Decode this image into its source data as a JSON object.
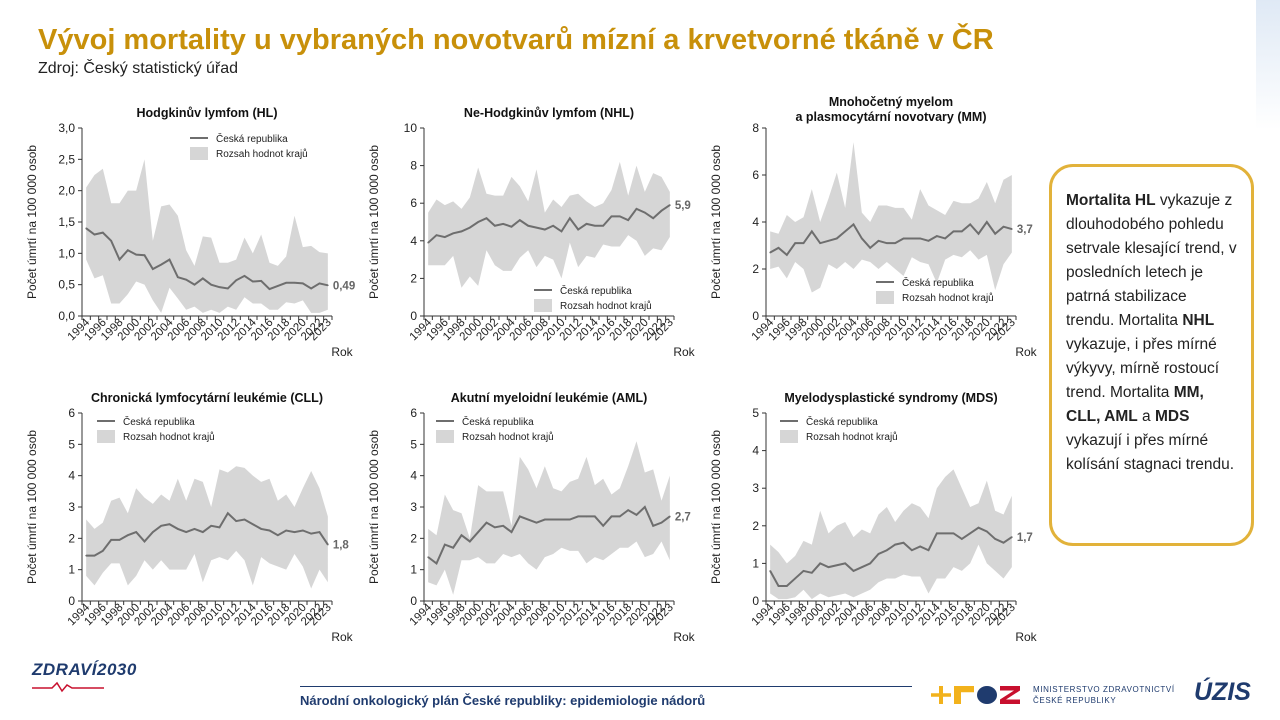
{
  "header": {
    "title": "Vývoj mortality u vybraných novotvarů mízní a krvetvorné tkáně v ČR",
    "source": "Zdroj: Český statistický úřad"
  },
  "callout": {
    "p1_bold": "Mortalita HL",
    "p1_text": " vykazuje z dlouhodobého pohledu setrvale klesající trend, v posledních letech je patrná stabilizace trendu. Mortalita ",
    "p2_bold": "NHL",
    "p2_text": " vykazuje, i přes mírné výkyvy, mírně rostoucí trend. Mortalita ",
    "p3_bold": "MM, CLL, AML",
    "p3_mid": " a ",
    "p4_bold": "MDS",
    "p4_text": " vykazují i přes mírné kolísání stagnaci trendu."
  },
  "footer": {
    "text": "Národní onkologický plán České republiky: epidemiologie nádorů",
    "logo_left": "ZDRAVÍ2030",
    "ministry_line1": "MINISTERSTVO ZDRAVOTNICTVÍ",
    "ministry_line2": "ČESKÉ REPUBLIKY",
    "logo_right": "ÚZIS"
  },
  "colors": {
    "title": "#c8900a",
    "line": "#6e6e6e",
    "band": "#d6d6d6",
    "callout_border": "#e2b23a",
    "footer": "#1f3b6e"
  },
  "chart_data": [
    {
      "type": "area",
      "title": "Hodgkinův lymfom (HL)",
      "ylabel": "Počet úmrtí na 100 000 osob",
      "xlabel": "Rok",
      "ylim": [
        0,
        3.0
      ],
      "yticks": [
        "0,0",
        "0,5",
        "1,0",
        "1,5",
        "2,0",
        "2,5",
        "3,0"
      ],
      "ytick_values": [
        0,
        0.5,
        1,
        1.5,
        2,
        2.5,
        3
      ],
      "x": [
        1994,
        1995,
        1996,
        1997,
        1998,
        1999,
        2000,
        2001,
        2002,
        2003,
        2004,
        2005,
        2006,
        2007,
        2008,
        2009,
        2010,
        2011,
        2012,
        2013,
        2014,
        2015,
        2016,
        2017,
        2018,
        2019,
        2020,
        2021,
        2022,
        2023
      ],
      "xtick_labels": [
        "1994",
        "1996",
        "1998",
        "2000",
        "2002",
        "2004",
        "2006",
        "2008",
        "2010",
        "2012",
        "2014",
        "2016",
        "2018",
        "2020",
        "2022",
        "2023"
      ],
      "legend": [
        "Česká republika",
        "Rozsah hodnot krajů"
      ],
      "series": [
        {
          "name": "Česká republika",
          "values": [
            1.4,
            1.3,
            1.33,
            1.2,
            0.9,
            1.05,
            0.98,
            0.97,
            0.75,
            0.82,
            0.9,
            0.62,
            0.58,
            0.5,
            0.6,
            0.5,
            0.46,
            0.44,
            0.57,
            0.64,
            0.55,
            0.56,
            0.43,
            0.48,
            0.53,
            0.53,
            0.52,
            0.44,
            0.52,
            0.49
          ]
        },
        {
          "name": "Rozsah hodnot krajů – max",
          "values": [
            2.05,
            2.25,
            2.35,
            1.8,
            1.8,
            2.0,
            2.0,
            2.5,
            1.2,
            1.75,
            1.78,
            1.6,
            1.05,
            0.8,
            1.27,
            1.25,
            0.85,
            0.85,
            0.9,
            1.25,
            1.0,
            1.3,
            0.85,
            0.8,
            0.95,
            1.6,
            1.1,
            1.12,
            1.02,
            1.0
          ]
        },
        {
          "name": "Rozsah hodnot krajů – min",
          "values": [
            0.9,
            0.6,
            0.65,
            0.2,
            0.2,
            0.35,
            0.55,
            0.5,
            0.25,
            0.05,
            0.45,
            0.28,
            0.1,
            0.15,
            0.05,
            0.1,
            0.05,
            0.15,
            0.1,
            0.3,
            0.2,
            0.2,
            0.1,
            0.1,
            0.22,
            0.2,
            0.25,
            0.05,
            0.05,
            0.1
          ]
        }
      ],
      "end_label": "0,49"
    },
    {
      "type": "area",
      "title": "Ne-Hodgkinův lymfom (NHL)",
      "ylabel": "Počet úmrtí na 100 000 osob",
      "xlabel": "Rok",
      "ylim": [
        0,
        10
      ],
      "yticks": [
        "0",
        "2",
        "4",
        "6",
        "8",
        "10"
      ],
      "ytick_values": [
        0,
        2,
        4,
        6,
        8,
        10
      ],
      "x": [
        1994,
        1995,
        1996,
        1997,
        1998,
        1999,
        2000,
        2001,
        2002,
        2003,
        2004,
        2005,
        2006,
        2007,
        2008,
        2009,
        2010,
        2011,
        2012,
        2013,
        2014,
        2015,
        2016,
        2017,
        2018,
        2019,
        2020,
        2021,
        2022,
        2023
      ],
      "xtick_labels": [
        "1994",
        "1996",
        "1998",
        "2000",
        "2002",
        "2004",
        "2006",
        "2008",
        "2010",
        "2012",
        "2014",
        "2016",
        "2018",
        "2020",
        "2022",
        "2023"
      ],
      "legend": [
        "Česká republika",
        "Rozsah hodnot krajů"
      ],
      "series": [
        {
          "name": "Česká republika",
          "values": [
            3.9,
            4.3,
            4.2,
            4.4,
            4.5,
            4.7,
            5.0,
            5.2,
            4.8,
            4.9,
            4.75,
            5.1,
            4.8,
            4.7,
            4.6,
            4.8,
            4.5,
            5.2,
            4.6,
            4.9,
            4.8,
            4.8,
            5.3,
            5.3,
            5.1,
            5.7,
            5.5,
            5.2,
            5.6,
            5.9
          ]
        },
        {
          "name": "Rozsah hodnot krajů – max",
          "values": [
            5.5,
            6.2,
            5.9,
            6.1,
            5.7,
            6.3,
            7.9,
            6.5,
            6.4,
            6.4,
            7.4,
            6.9,
            6.1,
            7.8,
            5.5,
            6.2,
            5.8,
            6.4,
            6.5,
            6.1,
            5.8,
            6.0,
            6.7,
            8.2,
            6.4,
            8.0,
            6.6,
            7.6,
            7.4,
            6.6
          ]
        },
        {
          "name": "Rozsah hodnot krajů – min",
          "values": [
            2.7,
            2.7,
            2.7,
            3.2,
            1.5,
            2.1,
            1.6,
            3.5,
            2.7,
            2.4,
            2.4,
            3.1,
            3.5,
            2.6,
            3.2,
            3.0,
            2.0,
            3.9,
            2.6,
            3.2,
            3.1,
            3.8,
            3.7,
            3.7,
            4.3,
            4.0,
            3.2,
            3.6,
            3.5,
            4.2
          ]
        }
      ],
      "end_label": "5,9"
    },
    {
      "type": "area",
      "title": "Mnohočetný myelom a plasmocytární novotvary (MM)",
      "title_line1": "Mnohočetný myelom",
      "title_line2": "a plasmocytární novotvary (MM)",
      "ylabel": "Počet úmrtí na 100 000 osob",
      "xlabel": "Rok",
      "ylim": [
        0,
        8
      ],
      "yticks": [
        "0",
        "2",
        "4",
        "6",
        "8"
      ],
      "ytick_values": [
        0,
        2,
        4,
        6,
        8
      ],
      "x": [
        1994,
        1995,
        1996,
        1997,
        1998,
        1999,
        2000,
        2001,
        2002,
        2003,
        2004,
        2005,
        2006,
        2007,
        2008,
        2009,
        2010,
        2011,
        2012,
        2013,
        2014,
        2015,
        2016,
        2017,
        2018,
        2019,
        2020,
        2021,
        2022,
        2023
      ],
      "xtick_labels": [
        "1994",
        "1996",
        "1998",
        "2000",
        "2002",
        "2004",
        "2006",
        "2008",
        "2010",
        "2012",
        "2014",
        "2016",
        "2018",
        "2020",
        "2022",
        "2023"
      ],
      "legend": [
        "Česká republika",
        "Rozsah hodnot krajů"
      ],
      "series": [
        {
          "name": "Česká republika",
          "values": [
            2.7,
            2.9,
            2.6,
            3.1,
            3.1,
            3.6,
            3.1,
            3.2,
            3.3,
            3.6,
            3.9,
            3.3,
            2.9,
            3.2,
            3.1,
            3.1,
            3.3,
            3.3,
            3.3,
            3.2,
            3.4,
            3.3,
            3.6,
            3.6,
            3.9,
            3.5,
            4.0,
            3.5,
            3.8,
            3.7
          ]
        },
        {
          "name": "Rozsah hodnot krajů – max",
          "values": [
            3.6,
            3.5,
            4.3,
            4.0,
            4.2,
            5.4,
            4.0,
            5.0,
            6.1,
            4.6,
            7.4,
            4.4,
            4.0,
            4.7,
            4.7,
            4.6,
            4.6,
            4.1,
            5.4,
            4.7,
            4.5,
            4.3,
            4.9,
            4.8,
            4.8,
            5.0,
            5.7,
            4.8,
            5.8,
            6.0
          ]
        },
        {
          "name": "Rozsah hodnot krajů – min",
          "values": [
            2.0,
            2.1,
            1.6,
            2.3,
            2.0,
            1.0,
            1.2,
            2.2,
            2.0,
            2.3,
            2.0,
            2.4,
            2.3,
            2.0,
            2.3,
            2.0,
            1.7,
            2.5,
            2.3,
            2.2,
            1.4,
            2.4,
            2.6,
            2.5,
            2.8,
            2.4,
            2.6,
            1.1,
            2.2,
            2.7
          ]
        }
      ],
      "end_label": "3,7"
    },
    {
      "type": "area",
      "title": "Chronická lymfocytární leukémie (CLL)",
      "ylabel": "Počet úmrtí na 100 000 osob",
      "xlabel": "Rok",
      "ylim": [
        0,
        6
      ],
      "yticks": [
        "0",
        "1",
        "2",
        "3",
        "4",
        "5",
        "6"
      ],
      "ytick_values": [
        0,
        1,
        2,
        3,
        4,
        5,
        6
      ],
      "x": [
        1994,
        1995,
        1996,
        1997,
        1998,
        1999,
        2000,
        2001,
        2002,
        2003,
        2004,
        2005,
        2006,
        2007,
        2008,
        2009,
        2010,
        2011,
        2012,
        2013,
        2014,
        2015,
        2016,
        2017,
        2018,
        2019,
        2020,
        2021,
        2022,
        2023
      ],
      "xtick_labels": [
        "1994",
        "1996",
        "1998",
        "2000",
        "2002",
        "2004",
        "2006",
        "2008",
        "2010",
        "2012",
        "2014",
        "2016",
        "2018",
        "2020",
        "2022",
        "2023"
      ],
      "legend": [
        "Česká republika",
        "Rozsah hodnot krajů"
      ],
      "series": [
        {
          "name": "Česká republika",
          "values": [
            1.45,
            1.45,
            1.6,
            1.95,
            1.95,
            2.1,
            2.2,
            1.9,
            2.2,
            2.4,
            2.45,
            2.3,
            2.2,
            2.3,
            2.2,
            2.4,
            2.35,
            2.8,
            2.55,
            2.6,
            2.45,
            2.3,
            2.25,
            2.1,
            2.25,
            2.2,
            2.25,
            2.15,
            2.2,
            1.8
          ]
        },
        {
          "name": "Rozsah hodnot krajů – max",
          "values": [
            2.6,
            2.3,
            2.5,
            3.2,
            3.3,
            2.8,
            3.6,
            3.3,
            3.1,
            3.4,
            3.2,
            3.9,
            3.2,
            3.9,
            3.8,
            3.0,
            4.2,
            4.1,
            4.3,
            4.25,
            4.0,
            3.8,
            3.9,
            3.2,
            3.4,
            3.0,
            3.6,
            4.15,
            3.6,
            2.7
          ]
        },
        {
          "name": "Rozsah hodnot krajů – min",
          "values": [
            0.8,
            0.5,
            0.9,
            1.2,
            1.2,
            0.5,
            0.8,
            1.3,
            1.0,
            1.3,
            1.0,
            1.0,
            1.0,
            1.5,
            0.6,
            1.3,
            1.4,
            1.3,
            1.6,
            1.3,
            0.5,
            1.4,
            1.2,
            1.1,
            1.0,
            1.5,
            1.1,
            0.4,
            1.0,
            0.6
          ]
        }
      ],
      "end_label": "1,8"
    },
    {
      "type": "area",
      "title": "Akutní myeloidní leukémie (AML)",
      "ylabel": "Počet úmrtí na 100 000 osob",
      "xlabel": "Rok",
      "ylim": [
        0,
        6
      ],
      "yticks": [
        "0",
        "1",
        "2",
        "3",
        "4",
        "5",
        "6"
      ],
      "ytick_values": [
        0,
        1,
        2,
        3,
        4,
        5,
        6
      ],
      "x": [
        1994,
        1995,
        1996,
        1997,
        1998,
        1999,
        2000,
        2001,
        2002,
        2003,
        2004,
        2005,
        2006,
        2007,
        2008,
        2009,
        2010,
        2011,
        2012,
        2013,
        2014,
        2015,
        2016,
        2017,
        2018,
        2019,
        2020,
        2021,
        2022,
        2023
      ],
      "xtick_labels": [
        "1994",
        "1996",
        "1998",
        "2000",
        "2002",
        "2004",
        "2006",
        "2008",
        "2010",
        "2012",
        "2014",
        "2016",
        "2018",
        "2020",
        "2022",
        "2023"
      ],
      "legend": [
        "Česká republika",
        "Rozsah hodnot krajů"
      ],
      "series": [
        {
          "name": "Česká republika",
          "values": [
            1.4,
            1.2,
            1.8,
            1.7,
            2.1,
            1.9,
            2.2,
            2.5,
            2.35,
            2.4,
            2.2,
            2.7,
            2.6,
            2.5,
            2.6,
            2.6,
            2.6,
            2.6,
            2.7,
            2.7,
            2.7,
            2.4,
            2.7,
            2.7,
            2.9,
            2.75,
            3.0,
            2.4,
            2.5,
            2.7
          ]
        },
        {
          "name": "Rozsah hodnot krajů – max",
          "values": [
            2.3,
            2.1,
            3.4,
            2.9,
            2.8,
            2.0,
            3.7,
            3.5,
            3.5,
            3.5,
            2.4,
            4.6,
            4.2,
            3.6,
            4.3,
            3.6,
            3.5,
            3.8,
            3.9,
            4.6,
            3.7,
            3.9,
            3.4,
            3.6,
            4.3,
            5.1,
            4.1,
            4.2,
            3.2,
            4.0
          ]
        },
        {
          "name": "Rozsah hodnot krajů – min",
          "values": [
            0.6,
            0.5,
            1.0,
            0.2,
            1.3,
            1.3,
            1.4,
            1.2,
            1.2,
            1.5,
            1.4,
            1.5,
            1.2,
            1.0,
            1.4,
            1.5,
            1.7,
            1.6,
            1.6,
            1.2,
            1.4,
            1.3,
            1.5,
            1.7,
            1.7,
            1.9,
            1.4,
            1.5,
            1.9,
            1.3
          ]
        }
      ],
      "end_label": "2,7"
    },
    {
      "type": "area",
      "title": "Myelodysplastické syndromy (MDS)",
      "ylabel": "Počet úmrtí na 100 000 osob",
      "xlabel": "Rok",
      "ylim": [
        0,
        5
      ],
      "yticks": [
        "0",
        "1",
        "2",
        "3",
        "4",
        "5"
      ],
      "ytick_values": [
        0,
        1,
        2,
        3,
        4,
        5
      ],
      "x": [
        1994,
        1995,
        1996,
        1997,
        1998,
        1999,
        2000,
        2001,
        2002,
        2003,
        2004,
        2005,
        2006,
        2007,
        2008,
        2009,
        2010,
        2011,
        2012,
        2013,
        2014,
        2015,
        2016,
        2017,
        2018,
        2019,
        2020,
        2021,
        2022,
        2023
      ],
      "xtick_labels": [
        "1994",
        "1996",
        "1998",
        "2000",
        "2002",
        "2004",
        "2006",
        "2008",
        "2010",
        "2012",
        "2014",
        "2016",
        "2018",
        "2020",
        "2022",
        "2023"
      ],
      "legend": [
        "Česká republika",
        "Rozsah hodnot krajů"
      ],
      "series": [
        {
          "name": "Česká republika",
          "values": [
            0.8,
            0.4,
            0.4,
            0.6,
            0.8,
            0.75,
            1.0,
            0.9,
            0.95,
            1.0,
            0.8,
            0.9,
            1.0,
            1.25,
            1.35,
            1.5,
            1.55,
            1.35,
            1.45,
            1.35,
            1.8,
            1.8,
            1.8,
            1.65,
            1.8,
            1.95,
            1.85,
            1.65,
            1.55,
            1.7
          ]
        },
        {
          "name": "Rozsah hodnot krajů – max",
          "values": [
            1.5,
            1.3,
            1.0,
            1.2,
            1.6,
            1.5,
            2.4,
            1.8,
            2.0,
            2.1,
            1.7,
            1.9,
            1.8,
            2.3,
            2.5,
            2.1,
            2.4,
            2.6,
            2.5,
            2.2,
            3.0,
            3.3,
            3.5,
            3.0,
            2.5,
            2.6,
            3.2,
            2.4,
            2.3,
            2.8
          ]
        },
        {
          "name": "Rozsah hodnot krajů – min",
          "values": [
            0.2,
            0.05,
            0.05,
            0.1,
            0.3,
            0.05,
            0.2,
            0.1,
            0.15,
            0.2,
            0.1,
            0.2,
            0.3,
            0.5,
            0.6,
            0.6,
            0.7,
            0.65,
            0.65,
            0.2,
            0.6,
            0.6,
            0.9,
            0.8,
            1.0,
            1.5,
            1.0,
            0.8,
            0.6,
            0.9
          ]
        }
      ],
      "end_label": "1,7"
    }
  ]
}
